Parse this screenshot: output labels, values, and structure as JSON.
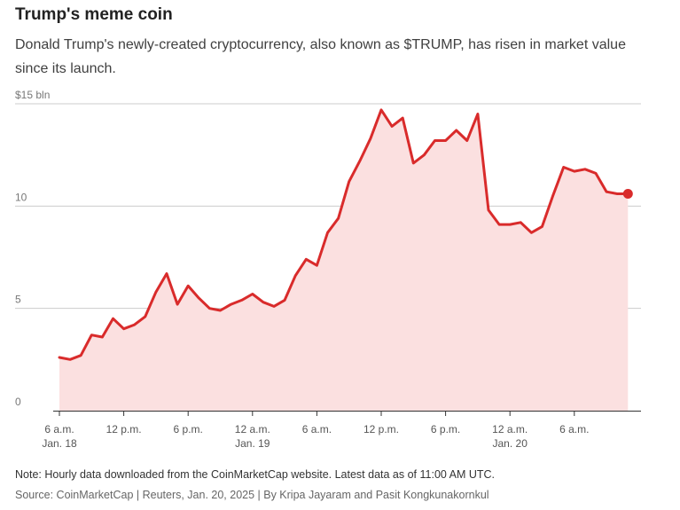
{
  "header": {
    "title": "Trump's meme coin",
    "subtitle": "Donald Trump's newly-created cryptocurrency, also known as $TRUMP, has risen in market value since its launch."
  },
  "footer": {
    "note": "Note: Hourly data downloaded from the CoinMarketCap website. Latest data as of 11:00 AM UTC.",
    "source": "Source: CoinMarketCap | Reuters, Jan. 20, 2025 | By Kripa Jayaram and Pasit Kongkunakornkul"
  },
  "colors": {
    "line": "#d92b2b",
    "area": "#fbe0e0",
    "grid": "#cccccc",
    "axis": "#333333"
  },
  "chart_data": {
    "type": "area",
    "yunit_label": "$15 bln",
    "ylim": [
      0,
      15
    ],
    "yticks": [
      0,
      5,
      10,
      15
    ],
    "ytick_labels": [
      "0",
      "5",
      "10",
      "$15 bln"
    ],
    "xlim": [
      -0.5,
      53.5
    ],
    "xticks": [
      {
        "pos": 0,
        "label": "6 a.m.",
        "sub": "Jan. 18"
      },
      {
        "pos": 6,
        "label": "12 p.m.",
        "sub": ""
      },
      {
        "pos": 12,
        "label": "6 p.m.",
        "sub": ""
      },
      {
        "pos": 18,
        "label": "12 a.m.",
        "sub": "Jan. 19"
      },
      {
        "pos": 24,
        "label": "6 a.m.",
        "sub": ""
      },
      {
        "pos": 30,
        "label": "12 p.m.",
        "sub": ""
      },
      {
        "pos": 36,
        "label": "6 p.m.",
        "sub": ""
      },
      {
        "pos": 42,
        "label": "12 a.m.",
        "sub": "Jan. 20"
      },
      {
        "pos": 48,
        "label": "6 a.m.",
        "sub": ""
      }
    ],
    "grid": true,
    "x": [
      0,
      1,
      2,
      3,
      4,
      5,
      6,
      7,
      8,
      9,
      10,
      11,
      12,
      13,
      14,
      15,
      16,
      17,
      18,
      19,
      20,
      21,
      22,
      23,
      24,
      25,
      26,
      27,
      28,
      29,
      30,
      31,
      32,
      33,
      34,
      35,
      36,
      37,
      38,
      39,
      40,
      41,
      42,
      43,
      44,
      45,
      46,
      47,
      48,
      49,
      50,
      51,
      52,
      53
    ],
    "values": [
      2.6,
      2.5,
      2.7,
      3.7,
      3.6,
      4.5,
      4.0,
      4.2,
      4.6,
      5.8,
      6.7,
      5.2,
      6.1,
      5.5,
      5.0,
      4.9,
      5.2,
      5.4,
      5.7,
      5.3,
      5.1,
      5.4,
      6.6,
      7.4,
      7.1,
      8.7,
      9.4,
      11.2,
      12.2,
      13.3,
      14.7,
      13.9,
      14.3,
      12.1,
      12.5,
      13.2,
      13.2,
      13.7,
      13.2,
      14.5,
      9.8,
      9.1,
      9.1,
      9.2,
      8.7,
      9.0,
      10.5,
      11.9,
      11.7,
      11.8,
      11.6,
      10.7,
      10.6,
      10.6
    ]
  }
}
